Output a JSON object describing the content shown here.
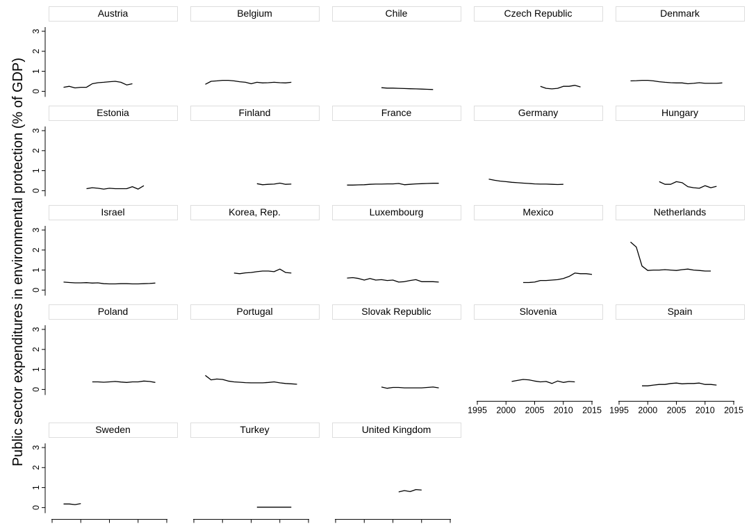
{
  "chart_data": {
    "type": "line",
    "ylabel": "Public sector expenditures in environmental protection (% of GDP)",
    "xlim": [
      1995,
      2015
    ],
    "ylim": [
      0,
      3
    ],
    "xticks": [
      1995,
      2000,
      2005,
      2010,
      2015
    ],
    "yticks": [
      0,
      1,
      2,
      3
    ],
    "grid": false,
    "panels": [
      {
        "name": "Austria",
        "points": [
          [
            1997,
            0.2
          ],
          [
            1998,
            0.25
          ],
          [
            1999,
            0.17
          ],
          [
            2000,
            0.2
          ],
          [
            2001,
            0.2
          ],
          [
            2002,
            0.38
          ],
          [
            2003,
            0.43
          ],
          [
            2004,
            0.45
          ],
          [
            2005,
            0.48
          ],
          [
            2006,
            0.5
          ],
          [
            2007,
            0.45
          ],
          [
            2008,
            0.32
          ],
          [
            2009,
            0.38
          ]
        ]
      },
      {
        "name": "Belgium",
        "points": [
          [
            1997,
            0.35
          ],
          [
            1998,
            0.5
          ],
          [
            1999,
            0.52
          ],
          [
            2000,
            0.55
          ],
          [
            2001,
            0.55
          ],
          [
            2002,
            0.52
          ],
          [
            2003,
            0.48
          ],
          [
            2004,
            0.45
          ],
          [
            2005,
            0.38
          ],
          [
            2006,
            0.45
          ],
          [
            2007,
            0.42
          ],
          [
            2008,
            0.43
          ],
          [
            2009,
            0.45
          ],
          [
            2010,
            0.43
          ],
          [
            2011,
            0.42
          ],
          [
            2012,
            0.45
          ]
        ]
      },
      {
        "name": "Chile",
        "points": [
          [
            2003,
            0.18
          ],
          [
            2004,
            0.16
          ],
          [
            2005,
            0.16
          ],
          [
            2006,
            0.15
          ],
          [
            2007,
            0.14
          ],
          [
            2008,
            0.13
          ],
          [
            2009,
            0.12
          ],
          [
            2010,
            0.11
          ],
          [
            2011,
            0.1
          ],
          [
            2012,
            0.09
          ]
        ]
      },
      {
        "name": "Czech Republic",
        "points": [
          [
            2006,
            0.25
          ],
          [
            2007,
            0.15
          ],
          [
            2008,
            0.12
          ],
          [
            2009,
            0.15
          ],
          [
            2010,
            0.25
          ],
          [
            2011,
            0.25
          ],
          [
            2012,
            0.3
          ],
          [
            2013,
            0.22
          ]
        ]
      },
      {
        "name": "Denmark",
        "points": [
          [
            1997,
            0.52
          ],
          [
            1998,
            0.53
          ],
          [
            1999,
            0.55
          ],
          [
            2000,
            0.55
          ],
          [
            2001,
            0.52
          ],
          [
            2002,
            0.48
          ],
          [
            2003,
            0.45
          ],
          [
            2004,
            0.43
          ],
          [
            2005,
            0.42
          ],
          [
            2006,
            0.42
          ],
          [
            2007,
            0.38
          ],
          [
            2008,
            0.4
          ],
          [
            2009,
            0.43
          ],
          [
            2010,
            0.4
          ],
          [
            2011,
            0.4
          ],
          [
            2012,
            0.4
          ],
          [
            2013,
            0.42
          ]
        ]
      },
      {
        "name": "Estonia",
        "points": [
          [
            2001,
            0.1
          ],
          [
            2002,
            0.15
          ],
          [
            2003,
            0.12
          ],
          [
            2004,
            0.08
          ],
          [
            2005,
            0.12
          ],
          [
            2006,
            0.1
          ],
          [
            2007,
            0.1
          ],
          [
            2008,
            0.1
          ],
          [
            2009,
            0.2
          ],
          [
            2010,
            0.08
          ],
          [
            2011,
            0.25
          ]
        ]
      },
      {
        "name": "Finland",
        "points": [
          [
            2006,
            0.35
          ],
          [
            2007,
            0.3
          ],
          [
            2008,
            0.32
          ],
          [
            2009,
            0.33
          ],
          [
            2010,
            0.38
          ],
          [
            2011,
            0.32
          ],
          [
            2012,
            0.33
          ]
        ]
      },
      {
        "name": "France",
        "points": [
          [
            1997,
            0.28
          ],
          [
            1998,
            0.28
          ],
          [
            1999,
            0.29
          ],
          [
            2000,
            0.3
          ],
          [
            2001,
            0.32
          ],
          [
            2002,
            0.33
          ],
          [
            2003,
            0.33
          ],
          [
            2004,
            0.34
          ],
          [
            2005,
            0.34
          ],
          [
            2006,
            0.36
          ],
          [
            2007,
            0.3
          ],
          [
            2008,
            0.32
          ],
          [
            2009,
            0.34
          ],
          [
            2010,
            0.35
          ],
          [
            2011,
            0.36
          ],
          [
            2012,
            0.37
          ],
          [
            2013,
            0.37
          ]
        ]
      },
      {
        "name": "Germany",
        "points": [
          [
            1997,
            0.58
          ],
          [
            1998,
            0.52
          ],
          [
            1999,
            0.48
          ],
          [
            2000,
            0.45
          ],
          [
            2001,
            0.42
          ],
          [
            2002,
            0.4
          ],
          [
            2003,
            0.38
          ],
          [
            2004,
            0.36
          ],
          [
            2005,
            0.34
          ],
          [
            2006,
            0.33
          ],
          [
            2007,
            0.33
          ],
          [
            2008,
            0.32
          ],
          [
            2009,
            0.31
          ],
          [
            2010,
            0.32
          ]
        ]
      },
      {
        "name": "Hungary",
        "points": [
          [
            2002,
            0.45
          ],
          [
            2003,
            0.32
          ],
          [
            2004,
            0.32
          ],
          [
            2005,
            0.45
          ],
          [
            2006,
            0.4
          ],
          [
            2007,
            0.2
          ],
          [
            2008,
            0.15
          ],
          [
            2009,
            0.12
          ],
          [
            2010,
            0.25
          ],
          [
            2011,
            0.15
          ],
          [
            2012,
            0.22
          ]
        ]
      },
      {
        "name": "Israel",
        "points": [
          [
            1997,
            0.4
          ],
          [
            1998,
            0.38
          ],
          [
            1999,
            0.36
          ],
          [
            2000,
            0.36
          ],
          [
            2001,
            0.37
          ],
          [
            2002,
            0.35
          ],
          [
            2003,
            0.36
          ],
          [
            2004,
            0.32
          ],
          [
            2005,
            0.31
          ],
          [
            2006,
            0.31
          ],
          [
            2007,
            0.32
          ],
          [
            2008,
            0.32
          ],
          [
            2009,
            0.31
          ],
          [
            2010,
            0.31
          ],
          [
            2011,
            0.32
          ],
          [
            2012,
            0.33
          ],
          [
            2013,
            0.35
          ]
        ]
      },
      {
        "name": "Korea, Rep.",
        "points": [
          [
            2002,
            0.85
          ],
          [
            2003,
            0.82
          ],
          [
            2004,
            0.86
          ],
          [
            2005,
            0.88
          ],
          [
            2006,
            0.92
          ],
          [
            2007,
            0.95
          ],
          [
            2008,
            0.95
          ],
          [
            2009,
            0.92
          ],
          [
            2010,
            1.05
          ],
          [
            2011,
            0.88
          ],
          [
            2012,
            0.85
          ]
        ]
      },
      {
        "name": "Luxembourg",
        "points": [
          [
            1997,
            0.6
          ],
          [
            1998,
            0.62
          ],
          [
            1999,
            0.58
          ],
          [
            2000,
            0.5
          ],
          [
            2001,
            0.58
          ],
          [
            2002,
            0.5
          ],
          [
            2003,
            0.52
          ],
          [
            2004,
            0.48
          ],
          [
            2005,
            0.5
          ],
          [
            2006,
            0.4
          ],
          [
            2007,
            0.42
          ],
          [
            2008,
            0.48
          ],
          [
            2009,
            0.52
          ],
          [
            2010,
            0.42
          ],
          [
            2011,
            0.42
          ],
          [
            2012,
            0.42
          ],
          [
            2013,
            0.4
          ]
        ]
      },
      {
        "name": "Mexico",
        "points": [
          [
            2003,
            0.38
          ],
          [
            2004,
            0.38
          ],
          [
            2005,
            0.4
          ],
          [
            2006,
            0.48
          ],
          [
            2007,
            0.48
          ],
          [
            2008,
            0.5
          ],
          [
            2009,
            0.52
          ],
          [
            2010,
            0.58
          ],
          [
            2011,
            0.68
          ],
          [
            2012,
            0.85
          ],
          [
            2013,
            0.82
          ],
          [
            2014,
            0.82
          ],
          [
            2015,
            0.78
          ]
        ]
      },
      {
        "name": "Netherlands",
        "points": [
          [
            1997,
            2.4
          ],
          [
            1998,
            2.15
          ],
          [
            1999,
            1.2
          ],
          [
            2000,
            0.98
          ],
          [
            2001,
            1.0
          ],
          [
            2002,
            1.0
          ],
          [
            2003,
            1.02
          ],
          [
            2004,
            1.0
          ],
          [
            2005,
            0.98
          ],
          [
            2006,
            1.02
          ],
          [
            2007,
            1.05
          ],
          [
            2008,
            1.0
          ],
          [
            2009,
            0.98
          ],
          [
            2010,
            0.95
          ],
          [
            2011,
            0.95
          ]
        ]
      },
      {
        "name": "Poland",
        "points": [
          [
            2002,
            0.38
          ],
          [
            2003,
            0.38
          ],
          [
            2004,
            0.36
          ],
          [
            2005,
            0.38
          ],
          [
            2006,
            0.4
          ],
          [
            2007,
            0.37
          ],
          [
            2008,
            0.35
          ],
          [
            2009,
            0.38
          ],
          [
            2010,
            0.38
          ],
          [
            2011,
            0.42
          ],
          [
            2012,
            0.4
          ],
          [
            2013,
            0.35
          ]
        ]
      },
      {
        "name": "Portugal",
        "points": [
          [
            1997,
            0.7
          ],
          [
            1998,
            0.48
          ],
          [
            1999,
            0.52
          ],
          [
            2000,
            0.5
          ],
          [
            2001,
            0.42
          ],
          [
            2002,
            0.38
          ],
          [
            2003,
            0.36
          ],
          [
            2004,
            0.34
          ],
          [
            2005,
            0.33
          ],
          [
            2006,
            0.33
          ],
          [
            2007,
            0.33
          ],
          [
            2008,
            0.35
          ],
          [
            2009,
            0.38
          ],
          [
            2010,
            0.33
          ],
          [
            2011,
            0.3
          ],
          [
            2012,
            0.28
          ],
          [
            2013,
            0.26
          ]
        ]
      },
      {
        "name": "Slovak Republic",
        "points": [
          [
            2003,
            0.12
          ],
          [
            2004,
            0.06
          ],
          [
            2005,
            0.1
          ],
          [
            2006,
            0.1
          ],
          [
            2007,
            0.08
          ],
          [
            2008,
            0.08
          ],
          [
            2009,
            0.08
          ],
          [
            2010,
            0.08
          ],
          [
            2011,
            0.1
          ],
          [
            2012,
            0.12
          ],
          [
            2013,
            0.08
          ]
        ]
      },
      {
        "name": "Slovenia",
        "points": [
          [
            2001,
            0.4
          ],
          [
            2002,
            0.45
          ],
          [
            2003,
            0.5
          ],
          [
            2004,
            0.48
          ],
          [
            2005,
            0.42
          ],
          [
            2006,
            0.38
          ],
          [
            2007,
            0.4
          ],
          [
            2008,
            0.3
          ],
          [
            2009,
            0.42
          ],
          [
            2010,
            0.35
          ],
          [
            2011,
            0.4
          ],
          [
            2012,
            0.38
          ]
        ]
      },
      {
        "name": "Spain",
        "points": [
          [
            1999,
            0.18
          ],
          [
            2000,
            0.18
          ],
          [
            2001,
            0.22
          ],
          [
            2002,
            0.25
          ],
          [
            2003,
            0.25
          ],
          [
            2004,
            0.3
          ],
          [
            2005,
            0.32
          ],
          [
            2006,
            0.28
          ],
          [
            2007,
            0.3
          ],
          [
            2008,
            0.3
          ],
          [
            2009,
            0.32
          ],
          [
            2010,
            0.25
          ],
          [
            2011,
            0.25
          ],
          [
            2012,
            0.22
          ]
        ]
      },
      {
        "name": "Sweden",
        "points": [
          [
            1997,
            0.18
          ],
          [
            1998,
            0.18
          ],
          [
            1999,
            0.15
          ],
          [
            2000,
            0.2
          ]
        ]
      },
      {
        "name": "Turkey",
        "points": [
          [
            2006,
            0.02
          ],
          [
            2007,
            0.02
          ],
          [
            2008,
            0.02
          ],
          [
            2009,
            0.02
          ],
          [
            2010,
            0.02
          ],
          [
            2011,
            0.02
          ],
          [
            2012,
            0.02
          ]
        ]
      },
      {
        "name": "United Kingdom",
        "points": [
          [
            2006,
            0.78
          ],
          [
            2007,
            0.85
          ],
          [
            2008,
            0.8
          ],
          [
            2009,
            0.9
          ],
          [
            2010,
            0.88
          ]
        ]
      }
    ]
  }
}
